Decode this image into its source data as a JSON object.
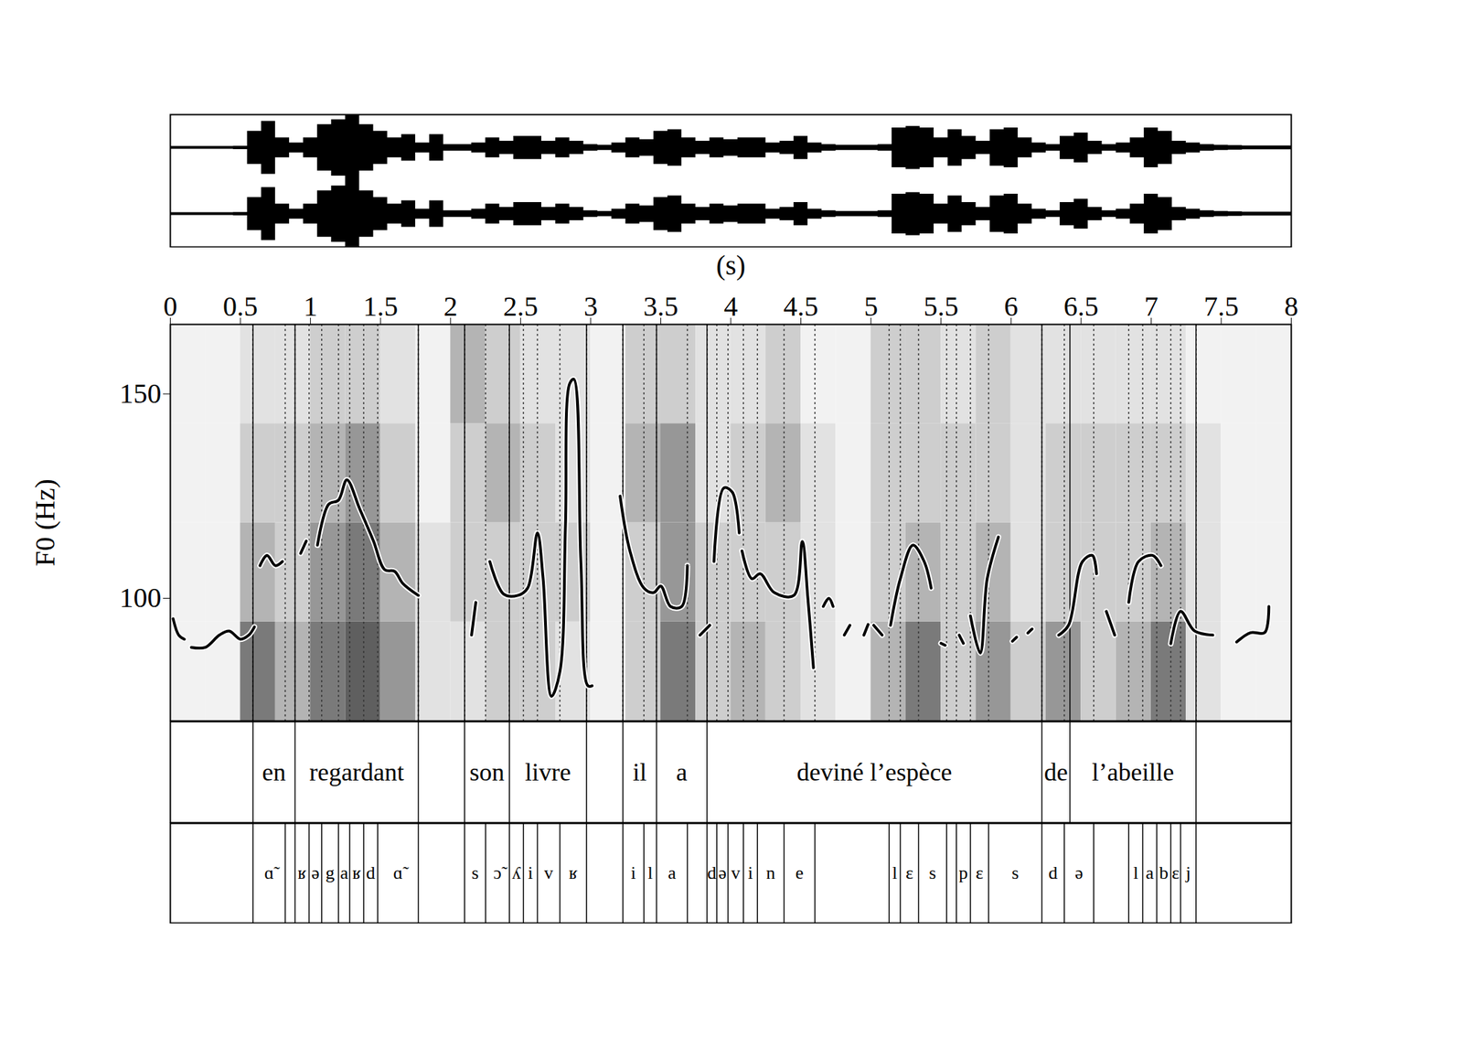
{
  "chart_data": {
    "type": "speech_f0",
    "xlabel": "(s)",
    "ylabel": "F0 (Hz)",
    "xlim": [
      0,
      8
    ],
    "xticks": [
      0,
      0.5,
      1,
      1.5,
      2,
      2.5,
      3,
      3.5,
      4,
      4.5,
      5,
      5.5,
      6,
      6.5,
      7,
      7.5,
      8
    ],
    "ylim": [
      70,
      167
    ],
    "yticks": [
      100,
      150
    ],
    "color": "#000000",
    "x": [
      0.02,
      0.06,
      0.1,
      0.12,
      0.15,
      0.25,
      0.35,
      0.42,
      0.5,
      0.56,
      0.6,
      0.62,
      0.64,
      0.69,
      0.75,
      0.8,
      0.86,
      0.93,
      0.97,
      1.01,
      1.05,
      1.13,
      1.2,
      1.26,
      1.35,
      1.45,
      1.53,
      1.6,
      1.66,
      1.77,
      2.0,
      2.15,
      2.18,
      2.23,
      2.28,
      2.38,
      2.48,
      2.55,
      2.62,
      2.66,
      2.72,
      2.78,
      2.82,
      2.85,
      2.88,
      2.93,
      2.98,
      3.01,
      3.1,
      3.21,
      3.28,
      3.38,
      3.45,
      3.5,
      3.57,
      3.65,
      3.69,
      3.74,
      3.78,
      3.85,
      3.87,
      3.88,
      3.95,
      4.01,
      4.06,
      4.07,
      4.08,
      4.15,
      4.21,
      4.31,
      4.45,
      4.51,
      4.55,
      4.59,
      4.62,
      4.66,
      4.7,
      4.73,
      4.77,
      4.81,
      4.85,
      4.9,
      4.95,
      4.98,
      5.0,
      5.02,
      5.08,
      5.11,
      5.14,
      5.21,
      5.3,
      5.38,
      5.43,
      5.47,
      5.5,
      5.53,
      5.58,
      5.63,
      5.66,
      5.69,
      5.71,
      5.78,
      5.83,
      5.91,
      5.97,
      6.01,
      6.04,
      6.09,
      6.12,
      6.15,
      6.25,
      6.34,
      6.41,
      6.51,
      6.58,
      6.61,
      6.65,
      6.68,
      6.74,
      6.79,
      6.84,
      6.91,
      7.01,
      7.07,
      7.11,
      7.14,
      7.21,
      7.31,
      7.44,
      7.53,
      7.61,
      7.71,
      7.81,
      7.84
    ],
    "values": [
      95,
      91,
      90,
      null,
      88,
      88,
      91,
      92,
      90,
      91,
      93,
      null,
      108,
      110.5,
      108,
      109,
      null,
      111,
      114,
      null,
      113,
      123,
      124,
      129,
      122,
      114,
      107,
      106.6,
      103.6,
      100.7,
      null,
      91,
      99,
      null,
      109,
      101,
      100.7,
      102.5,
      116,
      105,
      76,
      82,
      118,
      152.5,
      153.6,
      109,
      78.6,
      78.6,
      null,
      125,
      111.6,
      102.5,
      101.4,
      103,
      98,
      98,
      108,
      null,
      91,
      93.4,
      null,
      109,
      127,
      126,
      116,
      null,
      111.6,
      104.8,
      106,
      101.4,
      100.7,
      113.9,
      100,
      83,
      null,
      98,
      100,
      98,
      null,
      91,
      93.4,
      null,
      91,
      93.6,
      null,
      93.4,
      91,
      null,
      93.4,
      104.8,
      113,
      109,
      102.5,
      null,
      89,
      88.5,
      null,
      91,
      89,
      null,
      95.7,
      86.6,
      104.8,
      115,
      null,
      89.5,
      90.5,
      null,
      91.5,
      92.5,
      null,
      91,
      93.4,
      109,
      110.5,
      106,
      null,
      96.8,
      91,
      null,
      99,
      109,
      110.5,
      108,
      null,
      88.9,
      96.8,
      92,
      91,
      null,
      89.3,
      91.6,
      91.6,
      98
    ],
    "waveform": {
      "channels": 2,
      "x": [
        0,
        0.1,
        0.2,
        0.3,
        0.4,
        0.5,
        0.6,
        0.7,
        0.8,
        0.9,
        1,
        1.1,
        1.2,
        1.3,
        1.4,
        1.5,
        1.6,
        1.7,
        1.8,
        1.9,
        2,
        2.1,
        2.2,
        2.3,
        2.4,
        2.5,
        2.6,
        2.7,
        2.8,
        2.9,
        3,
        3.1,
        3.2,
        3.3,
        3.4,
        3.5,
        3.6,
        3.7,
        3.8,
        3.9,
        4,
        4.1,
        4.2,
        4.3,
        4.4,
        4.5,
        4.6,
        4.7,
        4.8,
        4.9,
        5,
        5.1,
        5.2,
        5.3,
        5.4,
        5.5,
        5.6,
        5.7,
        5.8,
        5.9,
        6,
        6.1,
        6.2,
        6.3,
        6.4,
        6.5,
        6.6,
        6.7,
        6.8,
        6.9,
        7,
        7.1,
        7.2,
        7.3,
        7.4,
        7.5,
        7.6,
        7.7,
        7.8,
        7.9,
        8
      ],
      "amplitude": [
        0.04,
        0.04,
        0.04,
        0.04,
        0.04,
        0.05,
        0.5,
        0.8,
        0.3,
        0.15,
        0.3,
        0.7,
        0.85,
        1.0,
        0.7,
        0.5,
        0.3,
        0.4,
        0.15,
        0.4,
        0.1,
        0.1,
        0.15,
        0.3,
        0.2,
        0.35,
        0.35,
        0.2,
        0.3,
        0.2,
        0.1,
        0.08,
        0.15,
        0.3,
        0.25,
        0.5,
        0.55,
        0.3,
        0.2,
        0.3,
        0.25,
        0.3,
        0.3,
        0.15,
        0.2,
        0.35,
        0.15,
        0.1,
        0.08,
        0.08,
        0.08,
        0.1,
        0.6,
        0.65,
        0.6,
        0.3,
        0.55,
        0.35,
        0.2,
        0.55,
        0.6,
        0.3,
        0.15,
        0.1,
        0.35,
        0.45,
        0.2,
        0.1,
        0.15,
        0.3,
        0.6,
        0.5,
        0.2,
        0.15,
        0.1,
        0.08,
        0.07,
        0.06,
        0.06,
        0.06,
        0.06
      ]
    },
    "spectrogram": {
      "x_edges": [
        0,
        0.25,
        0.5,
        0.75,
        1,
        1.25,
        1.5,
        1.75,
        2,
        2.25,
        2.5,
        2.75,
        3,
        3.25,
        3.5,
        3.75,
        4,
        4.25,
        4.5,
        4.75,
        5,
        5.25,
        5.5,
        5.75,
        6,
        6.25,
        6.5,
        6.75,
        7,
        7.25,
        7.5,
        7.75,
        8
      ],
      "darkness": [
        [
          0.1,
          0.1,
          0.6,
          0.4,
          0.6,
          0.7,
          0.5,
          0.2,
          0.2,
          0.3,
          0.3,
          0.2,
          0.1,
          0.3,
          0.6,
          0.3,
          0.4,
          0.3,
          0.2,
          0.1,
          0.4,
          0.6,
          0.3,
          0.5,
          0.3,
          0.5,
          0.3,
          0.4,
          0.6,
          0.2,
          0.1,
          0.1
        ],
        [
          0.1,
          0.1,
          0.4,
          0.3,
          0.5,
          0.6,
          0.4,
          0.2,
          0.3,
          0.3,
          0.3,
          0.3,
          0.1,
          0.3,
          0.5,
          0.3,
          0.3,
          0.3,
          0.2,
          0.1,
          0.3,
          0.4,
          0.3,
          0.4,
          0.2,
          0.3,
          0.3,
          0.3,
          0.4,
          0.2,
          0.1,
          0.1
        ],
        [
          0.1,
          0.1,
          0.3,
          0.3,
          0.4,
          0.5,
          0.3,
          0.1,
          0.3,
          0.4,
          0.3,
          0.2,
          0.1,
          0.4,
          0.5,
          0.2,
          0.3,
          0.4,
          0.2,
          0.1,
          0.3,
          0.3,
          0.3,
          0.3,
          0.2,
          0.3,
          0.3,
          0.3,
          0.3,
          0.2,
          0.1,
          0.1
        ],
        [
          0.1,
          0.1,
          0.2,
          0.2,
          0.3,
          0.3,
          0.2,
          0.1,
          0.4,
          0.3,
          0.2,
          0.2,
          0.1,
          0.3,
          0.3,
          0.2,
          0.2,
          0.3,
          0.1,
          0.1,
          0.3,
          0.3,
          0.2,
          0.3,
          0.2,
          0.2,
          0.2,
          0.2,
          0.2,
          0.1,
          0.1,
          0.1
        ]
      ]
    },
    "tiers": [
      {
        "boundaries": [
          0.59,
          0.89,
          1.77,
          2.1,
          2.42,
          2.97,
          3.23,
          3.47,
          3.83,
          6.22,
          6.42,
          7.32
        ],
        "labels": [
          "en",
          "regardant",
          null,
          "son",
          "livre",
          null,
          "il",
          "a",
          "deviné l’espèce",
          "de",
          "l’abeille"
        ]
      },
      {
        "boundaries": [
          0.59,
          0.82,
          0.89,
          0.99,
          1.08,
          1.2,
          1.28,
          1.38,
          1.48,
          1.77,
          2.1,
          2.25,
          2.42,
          2.52,
          2.62,
          2.78,
          2.97,
          3.23,
          3.38,
          3.47,
          3.69,
          3.83,
          3.9,
          3.98,
          4.09,
          4.19,
          4.38,
          4.6,
          5.13,
          5.21,
          5.34,
          5.54,
          5.61,
          5.71,
          5.84,
          6.22,
          6.38,
          6.59,
          6.84,
          6.94,
          7.04,
          7.14,
          7.21,
          7.32
        ],
        "labels": [
          "ɑ̃",
          null,
          "ʁ",
          "ə",
          "g",
          "a",
          "ʁ",
          "d",
          "ɑ̃",
          null,
          "s",
          "ɔ̃",
          "ʎ",
          "i",
          "v",
          "ʁ",
          null,
          "i",
          "l",
          "a",
          null,
          "d",
          "ə",
          "v",
          "i",
          "n",
          "e",
          null,
          "l",
          "ɛ",
          "s",
          null,
          "p",
          "ɛ",
          "s",
          "d",
          "ə",
          null,
          "l",
          "a",
          "b",
          "ɛ",
          "j"
        ]
      }
    ]
  }
}
